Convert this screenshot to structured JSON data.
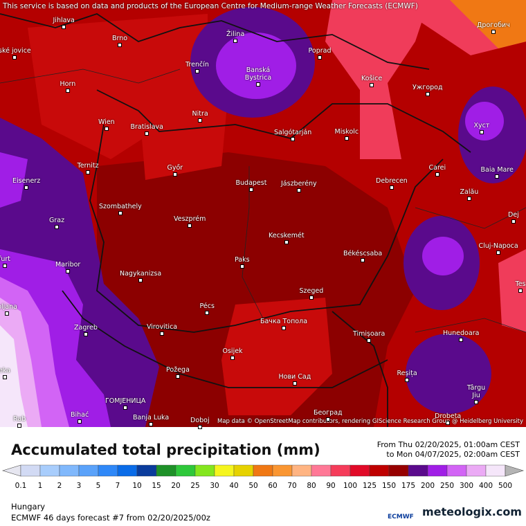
{
  "header": {
    "notice": "This service is based on data and products of the European Centre for Medium-range Weather Forecasts (ECMWF)"
  },
  "map": {
    "attribution": "Map data © OpenStreetMap contributors, rendering GIScience Research Group @ Heidelberg University",
    "places": [
      "Jihlava",
      "Brno",
      "ské jovice",
      "Horn",
      "Trenčín",
      "Žilina",
      "Banská Bystrica",
      "Poprad",
      "Košice",
      "Ужгород",
      "Дрогобич",
      "Хуст",
      "Wien",
      "Bratislava",
      "Nitra",
      "Salgótarján",
      "Miskolc",
      "Ternitz",
      "Eisenerz",
      "Győr",
      "Budapest",
      "Jászberény",
      "Debrecen",
      "Carei",
      "Baia Mare",
      "Szombathely",
      "Veszprém",
      "Graz",
      "Zalău",
      "Dej",
      "Kecskemét",
      "Cluj-Napoca",
      "Békéscsaba",
      "furt",
      "Maribor",
      "Paks",
      "Nagykanizsa",
      "Szeged",
      "bljana",
      "Tes",
      "Pécs",
      "Zagreb",
      "Virovitica",
      "Бачка Топола",
      "Timișoara",
      "Hunedoara",
      "Osijek",
      "eka",
      "Požega",
      "Reșița",
      "Нови Сад",
      "Târgu Jiu",
      "ГОМЈЕНИЦА",
      "Bihać",
      "Banja Luka",
      "Doboj",
      "Београд",
      "Drobeta",
      "Rab"
    ]
  },
  "legend": {
    "title": "Accumulated total precipitation (mm)",
    "period_from": "From Thu 02/20/2025, 01:00am CEST",
    "period_to": "to Mon 04/07/2025, 02:00am CEST",
    "levels": [
      0.1,
      1,
      2,
      3,
      5,
      7,
      10,
      15,
      20,
      25,
      30,
      40,
      50,
      60,
      70,
      80,
      90,
      100,
      125,
      150,
      175,
      200,
      250,
      300,
      400,
      500
    ],
    "colors": [
      "#d2daf4",
      "#a8cdfc",
      "#80b8fc",
      "#5aa2fa",
      "#2f88f8",
      "#0a6ce8",
      "#0a3c9c",
      "#1e9128",
      "#2ec83a",
      "#84e61e",
      "#f5f51e",
      "#e6d200",
      "#f07814",
      "#fa9632",
      "#ffb482",
      "#ff7896",
      "#f53c5a",
      "#e10a28",
      "#bf0000",
      "#960000",
      "#5a0a8c",
      "#a01ee6",
      "#d264f5",
      "#ebaaf5",
      "#f5e6fa"
    ],
    "under_color": "#e6e6f0",
    "over_color": "#b4b4b4"
  },
  "footer": {
    "region": "Hungary",
    "model": "ECMWF 46 days forecast #7 from  02/20/2025/00z",
    "logo_ecmwf": "ECMWF",
    "logo_site": "meteologix.com"
  }
}
